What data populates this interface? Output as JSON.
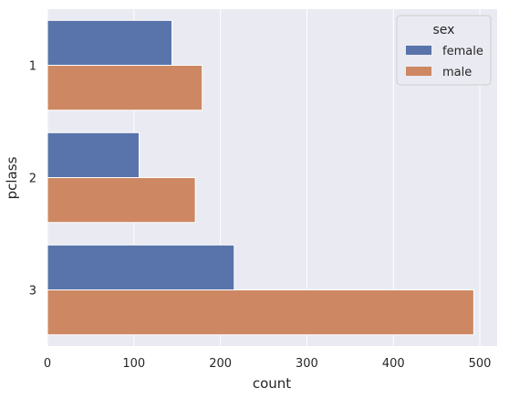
{
  "chart_data": {
    "type": "bar",
    "orientation": "horizontal",
    "categories": [
      "1",
      "2",
      "3"
    ],
    "series": [
      {
        "name": "female",
        "values": [
          144,
          106,
          216
        ],
        "color": "#5874aa"
      },
      {
        "name": "male",
        "values": [
          179,
          171,
          493
        ],
        "color": "#cd8863"
      }
    ],
    "xlabel": "count",
    "ylabel": "pclass",
    "xlim": [
      0,
      520
    ],
    "xticks": [
      0,
      100,
      200,
      300,
      400,
      500
    ],
    "grid": true,
    "legend": {
      "title": "sex",
      "placement": "top-right"
    },
    "background_color": "#eaeaf2",
    "grid_color": "#ffffff"
  }
}
